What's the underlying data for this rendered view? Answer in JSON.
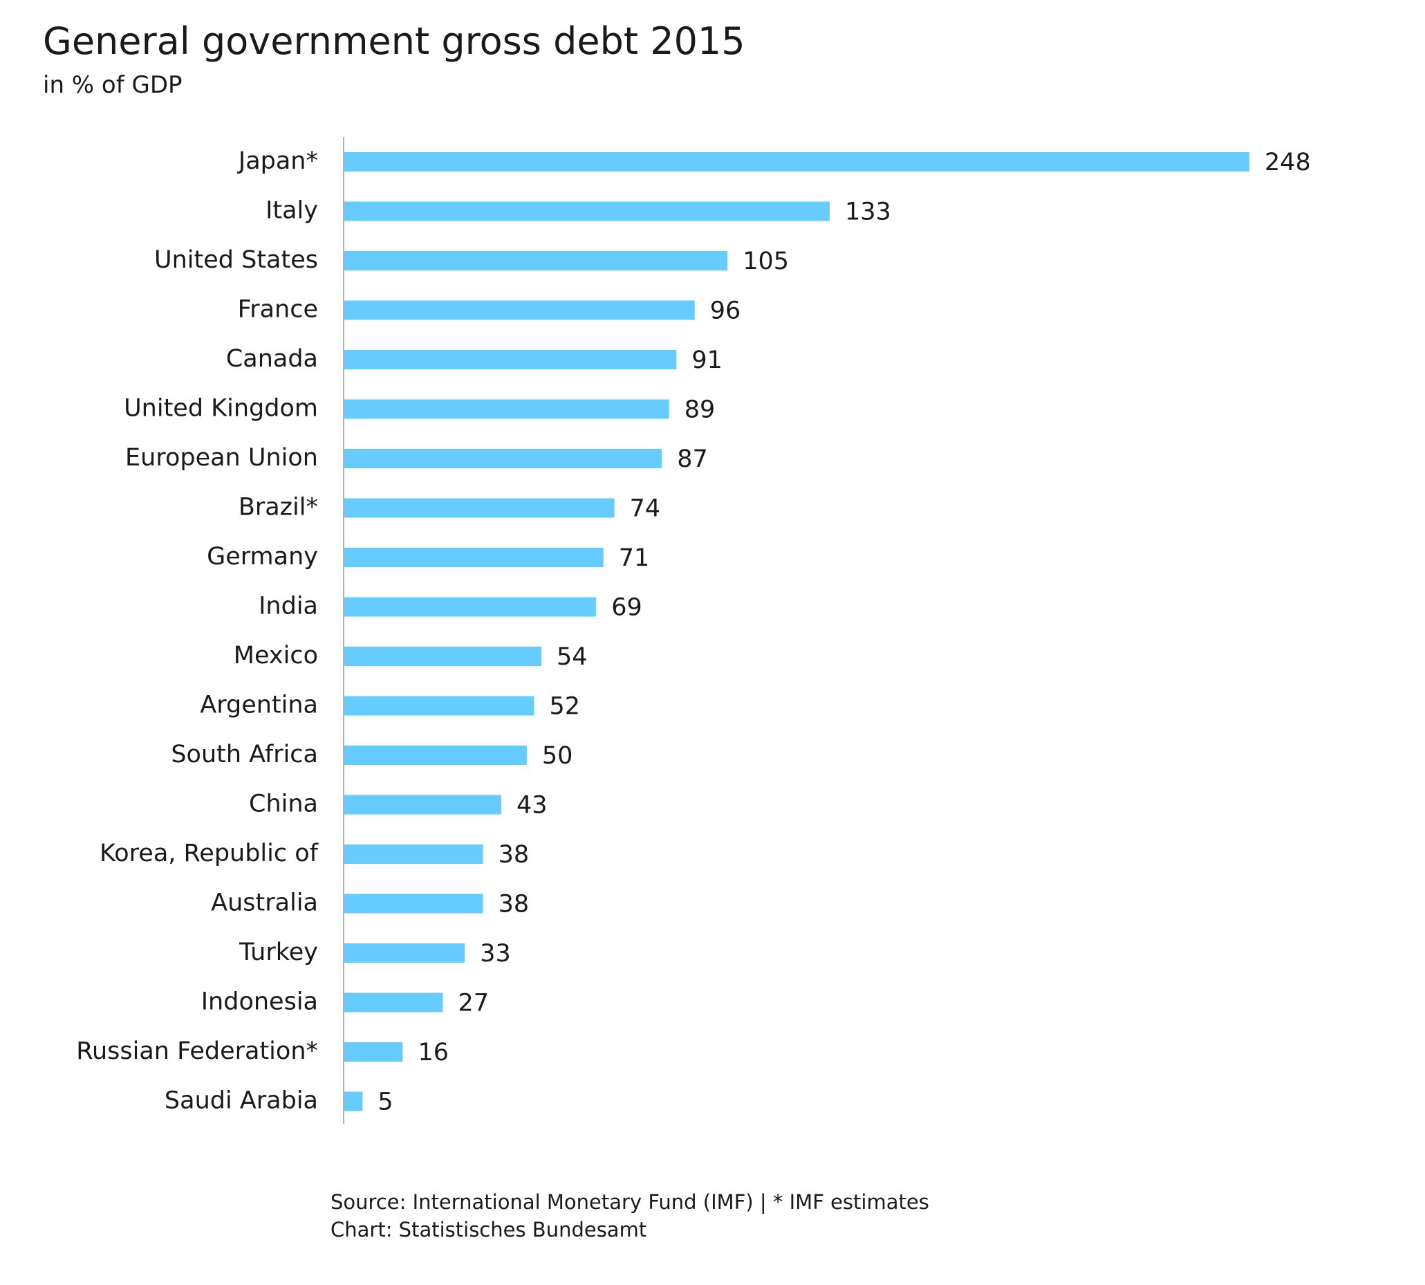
{
  "chart_data": {
    "type": "bar",
    "orientation": "horizontal",
    "title": "General government gross debt 2015",
    "subtitle": "in % of GDP",
    "categories": [
      "Japan*",
      "Italy",
      "United States",
      "France",
      "Canada",
      "United Kingdom",
      "European Union",
      "Brazil*",
      "Germany",
      "India",
      "Mexico",
      "Argentina",
      "South Africa",
      "China",
      "Korea, Republic of",
      "Australia",
      "Turkey",
      "Indonesia",
      "Russian Federation*",
      "Saudi Arabia"
    ],
    "values": [
      248,
      133,
      105,
      96,
      91,
      89,
      87,
      74,
      71,
      69,
      54,
      52,
      50,
      43,
      38,
      38,
      33,
      27,
      16,
      5
    ],
    "xlim": [
      0,
      248
    ],
    "grid": false,
    "bar_color": "#66ccff",
    "axis_color": "#b3b3b3"
  },
  "footer": {
    "source": "Source: International Monetary Fund (IMF) | * IMF estimates",
    "credit": "Chart: Statistisches Bundesamt"
  }
}
